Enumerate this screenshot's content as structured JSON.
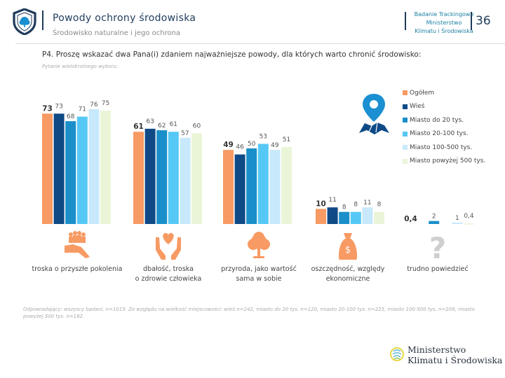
{
  "header": {
    "title": "Powody ochrony środowiska",
    "subtitle": "Środowisko naturalne i jego ochrona",
    "brand_lines": [
      "Badanie Trackingowe",
      "Ministerstwo",
      "Klimatu i Środowiska"
    ],
    "page_number": "36"
  },
  "question": {
    "text": "P4. Proszę wskazać dwa Pana(i) zdaniem najważniejsze powody, dla których warto chronić środowisko:",
    "note": "Pytanie wielokrotnego wyboru."
  },
  "colors": {
    "brand_navy": "#1f3b5c",
    "icon_orange": "#f79a63",
    "icon_grey": "#cfcfcf",
    "map_pin": "#1a8fd1",
    "map_navy": "#0f4a86"
  },
  "chart_data": {
    "type": "bar",
    "title": "P4. Proszę wskazać dwa Pana(i) zdaniem najważniejsze powody, dla których warto chronić środowisko:",
    "xlabel": "",
    "ylabel": "",
    "ylim": [
      0,
      100
    ],
    "grid": false,
    "legend_position": "top-right",
    "categories": [
      "troska o przyszłe pokolenia",
      "dbałość, troska o zdrowie człowieka",
      "przyroda, jako wartość sama w sobie",
      "oszczędność, względy ekonomiczne",
      "trudno powiedzieć"
    ],
    "category_lines": [
      [
        "troska o przyszłe pokolenia"
      ],
      [
        "dbałość, troska",
        "o zdrowie człowieka"
      ],
      [
        "przyroda, jako wartość",
        "sama w sobie"
      ],
      [
        "oszczędność, względy",
        "ekonomiczne"
      ],
      [
        "trudno powiedzieć"
      ]
    ],
    "category_icons": [
      "hand-people-icon",
      "hands-heart-icon",
      "tree-icon",
      "money-bag-icon",
      "question-mark-icon"
    ],
    "series": [
      {
        "name": "Ogółem",
        "color": "#f79a63",
        "values": [
          73,
          61,
          49,
          10,
          null
        ],
        "labels": [
          "73",
          "61",
          "49",
          "10",
          "0,4"
        ]
      },
      {
        "name": "Wieś",
        "color": "#0f4a86",
        "values": [
          73,
          63,
          46,
          11,
          0
        ],
        "labels": [
          "73",
          "63",
          "46",
          "11",
          ""
        ]
      },
      {
        "name": "Miasto do 20 tys.",
        "color": "#1a8fc9",
        "values": [
          68,
          62,
          50,
          8,
          2
        ],
        "labels": [
          "68",
          "62",
          "50",
          "8",
          "2"
        ]
      },
      {
        "name": "Miasto 20-100 tys.",
        "color": "#56c8f5",
        "values": [
          71,
          61,
          53,
          8,
          0
        ],
        "labels": [
          "71",
          "61",
          "53",
          "8",
          ""
        ]
      },
      {
        "name": "Miasto 100-500 tys.",
        "color": "#c8e9fb",
        "values": [
          76,
          57,
          49,
          11,
          1
        ],
        "labels": [
          "76",
          "57",
          "49",
          "11",
          "1"
        ]
      },
      {
        "name": "Miasto powyżej 500 tys.",
        "color": "#eaf5d8",
        "values": [
          75,
          60,
          51,
          8,
          0.4
        ],
        "labels": [
          "75",
          "60",
          "51",
          "8",
          "0,4"
        ]
      }
    ]
  },
  "footnote": "Odpowiadający: wszyscy badani, n=1015. Ze względu na wielkość miejscowości: wieś n=242, miasto do 20 tys. n=120, miasto 20-100 tys. n=225, miasto 100-500 tys. n=209, miasto powyżej 500 tys. n=182.",
  "ministry": {
    "lines": [
      "Ministerstwo",
      "Klimatu i Środowiska"
    ]
  }
}
